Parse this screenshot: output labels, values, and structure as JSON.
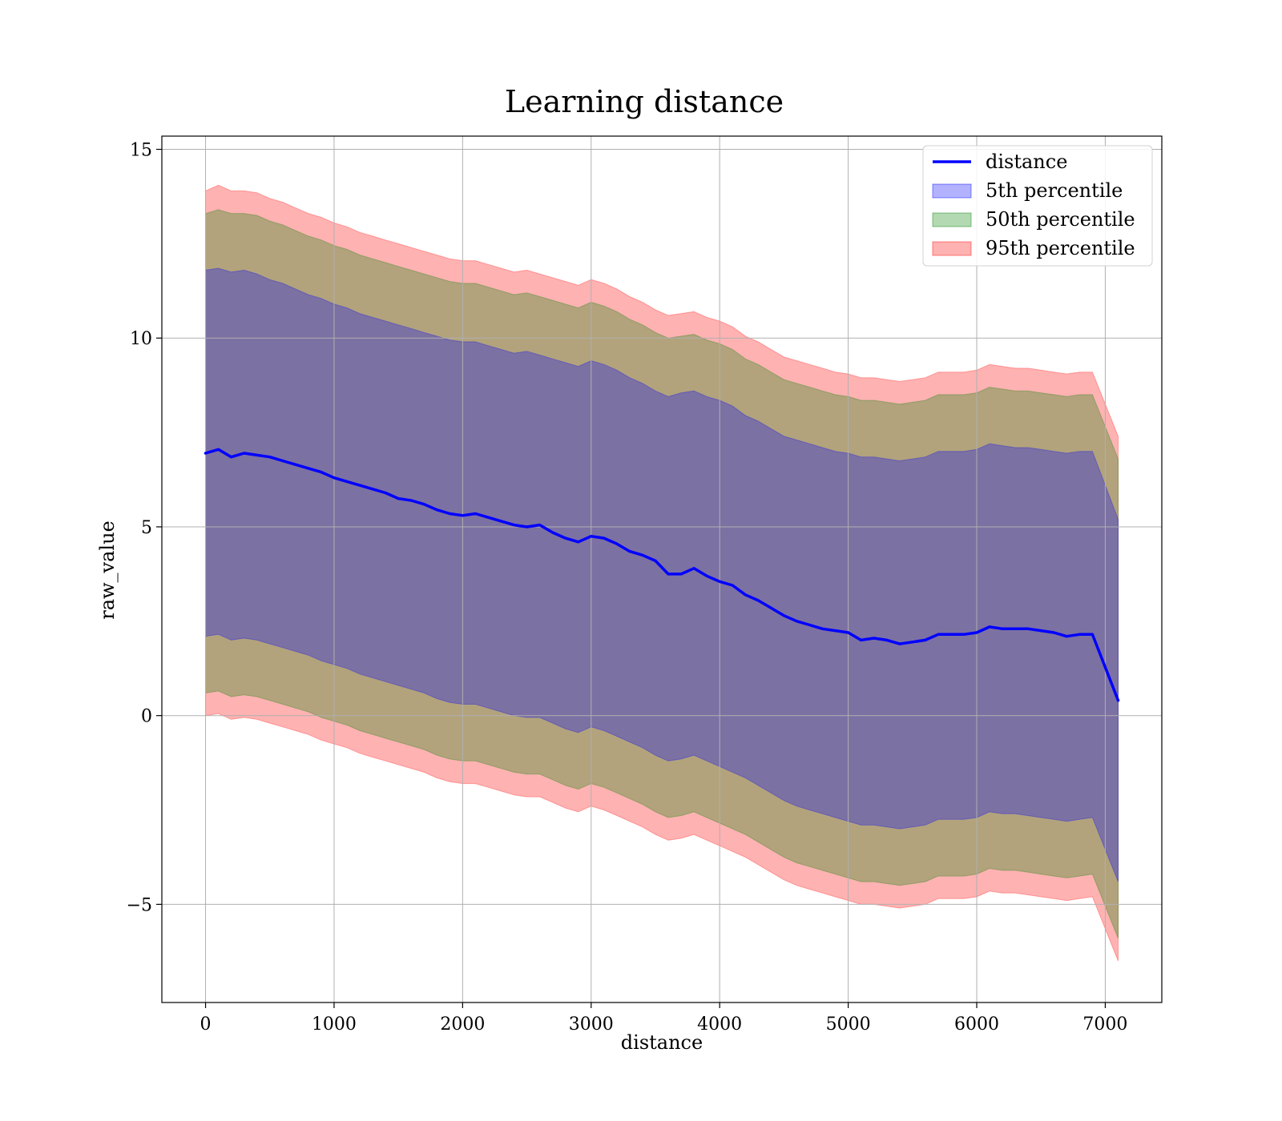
{
  "chart_data": {
    "type": "line",
    "title": "Learning distance",
    "xlabel": "distance",
    "ylabel": "raw_value",
    "xlim": [
      -340,
      7440
    ],
    "ylim": [
      -7.6,
      15.35
    ],
    "xticks": [
      0,
      1000,
      2000,
      3000,
      4000,
      5000,
      6000,
      7000
    ],
    "yticks": [
      -5,
      0,
      5,
      10,
      15
    ],
    "xtick_labels": [
      "0",
      "1000",
      "2000",
      "3000",
      "4000",
      "5000",
      "6000",
      "7000"
    ],
    "ytick_labels": [
      "−5",
      "0",
      "5",
      "10",
      "15"
    ],
    "grid": true,
    "legend_position": "top-right",
    "x": [
      0,
      100,
      200,
      300,
      400,
      500,
      600,
      700,
      800,
      900,
      1000,
      1100,
      1200,
      1300,
      1400,
      1500,
      1600,
      1700,
      1800,
      1900,
      2000,
      2100,
      2200,
      2300,
      2400,
      2500,
      2600,
      2700,
      2800,
      2900,
      3000,
      3100,
      3200,
      3300,
      3400,
      3500,
      3600,
      3700,
      3800,
      3900,
      4000,
      4100,
      4200,
      4300,
      4400,
      4500,
      4600,
      4700,
      4800,
      4900,
      5000,
      5100,
      5200,
      5300,
      5400,
      5500,
      5600,
      5700,
      5800,
      5900,
      6000,
      6100,
      6200,
      6300,
      6400,
      6500,
      6600,
      6700,
      6800,
      6900,
      7100
    ],
    "series": [
      {
        "name": "distance",
        "kind": "line",
        "color": "#0000ff",
        "values": [
          6.95,
          7.05,
          6.85,
          6.95,
          6.9,
          6.85,
          6.75,
          6.65,
          6.55,
          6.45,
          6.3,
          6.2,
          6.1,
          6.0,
          5.9,
          5.75,
          5.7,
          5.6,
          5.45,
          5.35,
          5.3,
          5.35,
          5.25,
          5.15,
          5.05,
          5.0,
          5.05,
          4.85,
          4.7,
          4.6,
          4.75,
          4.7,
          4.55,
          4.35,
          4.25,
          4.1,
          3.75,
          3.75,
          3.9,
          3.7,
          3.55,
          3.45,
          3.2,
          3.05,
          2.85,
          2.65,
          2.5,
          2.4,
          2.3,
          2.25,
          2.2,
          2.0,
          2.05,
          2.0,
          1.9,
          1.95,
          2.0,
          2.15,
          2.15,
          2.15,
          2.2,
          2.35,
          2.3,
          2.3,
          2.3,
          2.25,
          2.2,
          2.1,
          2.15,
          2.15,
          0.4
        ]
      },
      {
        "name": "5th percentile",
        "kind": "band",
        "color": "#0000ff",
        "alpha": 0.3,
        "upper": [
          11.8,
          11.85,
          11.75,
          11.8,
          11.7,
          11.55,
          11.45,
          11.3,
          11.15,
          11.05,
          10.9,
          10.8,
          10.65,
          10.55,
          10.45,
          10.35,
          10.25,
          10.15,
          10.05,
          9.95,
          9.9,
          9.9,
          9.8,
          9.7,
          9.6,
          9.65,
          9.55,
          9.45,
          9.35,
          9.25,
          9.4,
          9.3,
          9.15,
          8.95,
          8.8,
          8.6,
          8.45,
          8.55,
          8.6,
          8.45,
          8.35,
          8.2,
          7.95,
          7.8,
          7.6,
          7.4,
          7.3,
          7.2,
          7.1,
          7.0,
          6.95,
          6.85,
          6.85,
          6.8,
          6.75,
          6.8,
          6.85,
          7.0,
          7.0,
          7.0,
          7.05,
          7.2,
          7.15,
          7.1,
          7.1,
          7.05,
          7.0,
          6.95,
          7.0,
          7.0,
          5.2
        ],
        "lower": [
          2.1,
          2.15,
          2.0,
          2.05,
          2.0,
          1.9,
          1.8,
          1.7,
          1.6,
          1.45,
          1.35,
          1.25,
          1.1,
          1.0,
          0.9,
          0.8,
          0.7,
          0.6,
          0.45,
          0.35,
          0.3,
          0.3,
          0.2,
          0.1,
          0.0,
          -0.05,
          -0.05,
          -0.2,
          -0.35,
          -0.45,
          -0.3,
          -0.4,
          -0.55,
          -0.7,
          -0.85,
          -1.05,
          -1.2,
          -1.15,
          -1.05,
          -1.2,
          -1.35,
          -1.5,
          -1.65,
          -1.85,
          -2.05,
          -2.25,
          -2.4,
          -2.5,
          -2.6,
          -2.7,
          -2.8,
          -2.9,
          -2.9,
          -2.95,
          -3.0,
          -2.95,
          -2.9,
          -2.75,
          -2.75,
          -2.75,
          -2.7,
          -2.55,
          -2.6,
          -2.6,
          -2.65,
          -2.7,
          -2.75,
          -2.8,
          -2.75,
          -2.7,
          -4.4
        ]
      },
      {
        "name": "50th percentile",
        "kind": "band",
        "color": "#008000",
        "alpha": 0.3,
        "upper": [
          13.3,
          13.4,
          13.3,
          13.3,
          13.25,
          13.1,
          13.0,
          12.85,
          12.7,
          12.6,
          12.45,
          12.35,
          12.2,
          12.1,
          12.0,
          11.9,
          11.8,
          11.7,
          11.6,
          11.5,
          11.45,
          11.45,
          11.35,
          11.25,
          11.15,
          11.2,
          11.1,
          11.0,
          10.9,
          10.8,
          10.95,
          10.85,
          10.7,
          10.5,
          10.35,
          10.15,
          10.0,
          10.05,
          10.1,
          9.95,
          9.85,
          9.7,
          9.45,
          9.3,
          9.1,
          8.9,
          8.8,
          8.7,
          8.6,
          8.5,
          8.45,
          8.35,
          8.35,
          8.3,
          8.25,
          8.3,
          8.35,
          8.5,
          8.5,
          8.5,
          8.55,
          8.7,
          8.65,
          8.6,
          8.6,
          8.55,
          8.5,
          8.45,
          8.5,
          8.5,
          6.8
        ],
        "lower": [
          0.6,
          0.65,
          0.5,
          0.55,
          0.5,
          0.4,
          0.3,
          0.2,
          0.1,
          -0.05,
          -0.15,
          -0.25,
          -0.4,
          -0.5,
          -0.6,
          -0.7,
          -0.8,
          -0.9,
          -1.05,
          -1.15,
          -1.2,
          -1.2,
          -1.3,
          -1.4,
          -1.5,
          -1.55,
          -1.55,
          -1.7,
          -1.85,
          -1.95,
          -1.8,
          -1.9,
          -2.05,
          -2.2,
          -2.35,
          -2.55,
          -2.7,
          -2.65,
          -2.55,
          -2.7,
          -2.85,
          -3.0,
          -3.15,
          -3.35,
          -3.55,
          -3.75,
          -3.9,
          -4.0,
          -4.1,
          -4.2,
          -4.3,
          -4.4,
          -4.4,
          -4.45,
          -4.5,
          -4.45,
          -4.4,
          -4.25,
          -4.25,
          -4.25,
          -4.2,
          -4.05,
          -4.1,
          -4.1,
          -4.15,
          -4.2,
          -4.25,
          -4.3,
          -4.25,
          -4.2,
          -5.9
        ]
      },
      {
        "name": "95th percentile",
        "kind": "band",
        "color": "#ff0000",
        "alpha": 0.3,
        "upper": [
          13.9,
          14.05,
          13.9,
          13.9,
          13.85,
          13.7,
          13.6,
          13.45,
          13.3,
          13.2,
          13.05,
          12.95,
          12.8,
          12.7,
          12.6,
          12.5,
          12.4,
          12.3,
          12.2,
          12.1,
          12.05,
          12.05,
          11.95,
          11.85,
          11.75,
          11.8,
          11.7,
          11.6,
          11.5,
          11.4,
          11.55,
          11.45,
          11.3,
          11.1,
          10.95,
          10.75,
          10.6,
          10.65,
          10.7,
          10.55,
          10.45,
          10.3,
          10.05,
          9.9,
          9.7,
          9.5,
          9.4,
          9.3,
          9.2,
          9.1,
          9.05,
          8.95,
          8.95,
          8.9,
          8.85,
          8.9,
          8.95,
          9.1,
          9.1,
          9.1,
          9.15,
          9.3,
          9.25,
          9.2,
          9.2,
          9.15,
          9.1,
          9.05,
          9.1,
          9.1,
          7.4
        ],
        "lower": [
          0.0,
          0.05,
          -0.1,
          -0.05,
          -0.1,
          -0.2,
          -0.3,
          -0.4,
          -0.5,
          -0.65,
          -0.75,
          -0.85,
          -1.0,
          -1.1,
          -1.2,
          -1.3,
          -1.4,
          -1.5,
          -1.65,
          -1.75,
          -1.8,
          -1.8,
          -1.9,
          -2.0,
          -2.1,
          -2.15,
          -2.15,
          -2.3,
          -2.45,
          -2.55,
          -2.4,
          -2.5,
          -2.65,
          -2.8,
          -2.95,
          -3.15,
          -3.3,
          -3.25,
          -3.15,
          -3.3,
          -3.45,
          -3.6,
          -3.75,
          -3.95,
          -4.15,
          -4.35,
          -4.5,
          -4.6,
          -4.7,
          -4.8,
          -4.9,
          -5.0,
          -5.0,
          -5.05,
          -5.1,
          -5.05,
          -5.0,
          -4.85,
          -4.85,
          -4.85,
          -4.8,
          -4.65,
          -4.7,
          -4.7,
          -4.75,
          -4.8,
          -4.85,
          -4.9,
          -4.85,
          -4.8,
          -6.5
        ]
      }
    ],
    "legend": [
      {
        "label": "distance",
        "kind": "line",
        "color": "#0000ff"
      },
      {
        "label": "5th percentile",
        "kind": "patch",
        "color": "#0000ff",
        "alpha": 0.3
      },
      {
        "label": "50th percentile",
        "kind": "patch",
        "color": "#008000",
        "alpha": 0.3
      },
      {
        "label": "95th percentile",
        "kind": "patch",
        "color": "#ff0000",
        "alpha": 0.3
      }
    ]
  }
}
